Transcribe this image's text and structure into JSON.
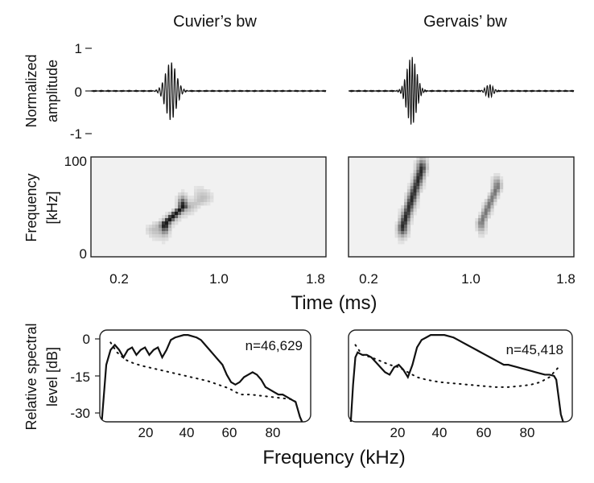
{
  "chart_data": [
    {
      "type": "line",
      "panel": "waveform-cuvier",
      "title": "Cuvier’s bw",
      "ylabel": "Normalized amplitude",
      "xlim": [
        0.0,
        2.0
      ],
      "ylim": [
        -1.1,
        1.1
      ],
      "yticks": [
        "1",
        "0",
        "-1"
      ],
      "pulses": [
        {
          "center": 0.68,
          "width": 0.065,
          "amplitude": 0.75,
          "freq_khz": 38
        }
      ]
    },
    {
      "type": "line",
      "panel": "waveform-gervais",
      "title": "Gervais’ bw",
      "xlim": [
        0.0,
        2.0
      ],
      "ylim": [
        -1.1,
        1.1
      ],
      "pulses": [
        {
          "center": 0.56,
          "width": 0.06,
          "amplitude": 0.88,
          "freq_khz": 44
        },
        {
          "center": 1.25,
          "width": 0.045,
          "amplitude": 0.17,
          "freq_khz": 40
        }
      ]
    },
    {
      "type": "heatmap",
      "panel": "spectrogram-cuvier",
      "ylabel": "Frequency [kHz]",
      "xlabel": "",
      "xlim": [
        0.0,
        2.0
      ],
      "ylim": [
        0,
        100
      ],
      "yticks": [
        "100",
        "0"
      ],
      "xticks": [
        "0.2",
        "1.0",
        "1.8"
      ],
      "blobs": [
        {
          "t0": 0.63,
          "f0": 33,
          "t1": 0.78,
          "f1": 50,
          "intensity": 0.95,
          "spread": 0.035
        },
        {
          "t0": 0.55,
          "f0": 28,
          "t1": 0.95,
          "f1": 58,
          "intensity": 0.2,
          "spread": 0.08
        }
      ]
    },
    {
      "type": "heatmap",
      "panel": "spectrogram-gervais",
      "xlim": [
        0.0,
        2.0
      ],
      "ylim": [
        0,
        100
      ],
      "xticks": [
        "0.2",
        "1.0",
        "1.8"
      ],
      "blobs": [
        {
          "t0": 0.48,
          "f0": 30,
          "t1": 0.65,
          "f1": 88,
          "intensity": 0.9,
          "spread": 0.04
        },
        {
          "t0": 1.18,
          "f0": 35,
          "t1": 1.32,
          "f1": 70,
          "intensity": 0.55,
          "spread": 0.035
        }
      ]
    },
    {
      "type": "line",
      "panel": "spectrum-cuvier",
      "ylabel": "Relative spectral level [dB]",
      "xlim": [
        0,
        98
      ],
      "ylim": [
        -35,
        2
      ],
      "yticks": [
        "0",
        "-15",
        "-30"
      ],
      "xticks": [
        "20",
        "40",
        "60",
        "80"
      ],
      "annotation": "n=46,629",
      "series": [
        {
          "style": "solid",
          "x": [
            1,
            3,
            5,
            7,
            9,
            11,
            13,
            15,
            17,
            19,
            21,
            23,
            25,
            27,
            29,
            31,
            33,
            35,
            37,
            39,
            41,
            43,
            45,
            47,
            49,
            51,
            53,
            55,
            57,
            59,
            61,
            63,
            65,
            67,
            69,
            71,
            73,
            75,
            77,
            79,
            81,
            83,
            85,
            87,
            89,
            91,
            92,
            93,
            94
          ],
          "y": [
            -34,
            -12,
            -6,
            -4,
            -6,
            -9,
            -6,
            -5,
            -8,
            -6,
            -5,
            -8,
            -6,
            -5,
            -9,
            -6,
            -2,
            -1,
            -0.5,
            0,
            0,
            -0.5,
            -1,
            -2,
            -4,
            -6,
            -8,
            -10,
            -12,
            -16,
            -19,
            -20,
            -19,
            -17,
            -16,
            -15,
            -16,
            -18,
            -21,
            -22,
            -23,
            -24,
            -24,
            -25,
            -26,
            -27,
            -30,
            -33,
            -35
          ]
        },
        {
          "style": "dotted",
          "x": [
            5,
            8,
            12,
            16,
            20,
            25,
            30,
            35,
            40,
            45,
            50,
            55,
            60,
            63,
            66,
            70,
            75,
            80,
            85,
            90,
            92
          ],
          "y": [
            -3,
            -7,
            -10,
            -11.5,
            -12.5,
            -13.5,
            -14.5,
            -15.5,
            -16.5,
            -17.5,
            -18.5,
            -20,
            -21.5,
            -23,
            -24,
            -24,
            -24.5,
            -25,
            -25.5,
            -26,
            -28
          ]
        }
      ]
    },
    {
      "type": "line",
      "panel": "spectrum-gervais",
      "xlim": [
        0,
        98
      ],
      "ylim": [
        -35,
        2
      ],
      "xticks": [
        "20",
        "40",
        "60",
        "80"
      ],
      "annotation": "n=45,418",
      "series": [
        {
          "style": "solid",
          "x": [
            1,
            2,
            3,
            4,
            6,
            8,
            10,
            12,
            14,
            16,
            18,
            20,
            22,
            24,
            26,
            28,
            30,
            32,
            34,
            36,
            38,
            40,
            42,
            44,
            46,
            48,
            50,
            52,
            54,
            56,
            58,
            60,
            62,
            64,
            66,
            68,
            70,
            72,
            74,
            76,
            78,
            80,
            82,
            84,
            86,
            88,
            90,
            91,
            92,
            93,
            94
          ],
          "y": [
            -35,
            -20,
            -9,
            -7,
            -8,
            -8,
            -9,
            -11,
            -13,
            -15,
            -16,
            -13,
            -12,
            -14,
            -17,
            -12,
            -5,
            -2,
            -1,
            0,
            0,
            0,
            0,
            -0.5,
            -1,
            -2,
            -3,
            -4,
            -5,
            -6,
            -7,
            -8,
            -9,
            -10,
            -11,
            -12,
            -12,
            -12.5,
            -13,
            -13.5,
            -14,
            -14.5,
            -15,
            -15.5,
            -16,
            -16,
            -16.5,
            -18,
            -25,
            -32,
            -35
          ]
        },
        {
          "style": "dotted",
          "x": [
            3,
            6,
            10,
            14,
            18,
            22,
            26,
            30,
            34,
            40,
            46,
            52,
            58,
            64,
            70,
            76,
            80,
            84,
            88,
            90,
            92
          ],
          "y": [
            -4,
            -8,
            -9,
            -10.5,
            -12,
            -13,
            -15,
            -17,
            -18,
            -19,
            -19.5,
            -20,
            -20.5,
            -21,
            -21,
            -20.5,
            -20,
            -19,
            -17,
            -15,
            -13
          ]
        }
      ]
    }
  ],
  "shared_labels": {
    "time_axis": "Time (ms)",
    "frequency_axis": "Frequency (kHz)"
  }
}
